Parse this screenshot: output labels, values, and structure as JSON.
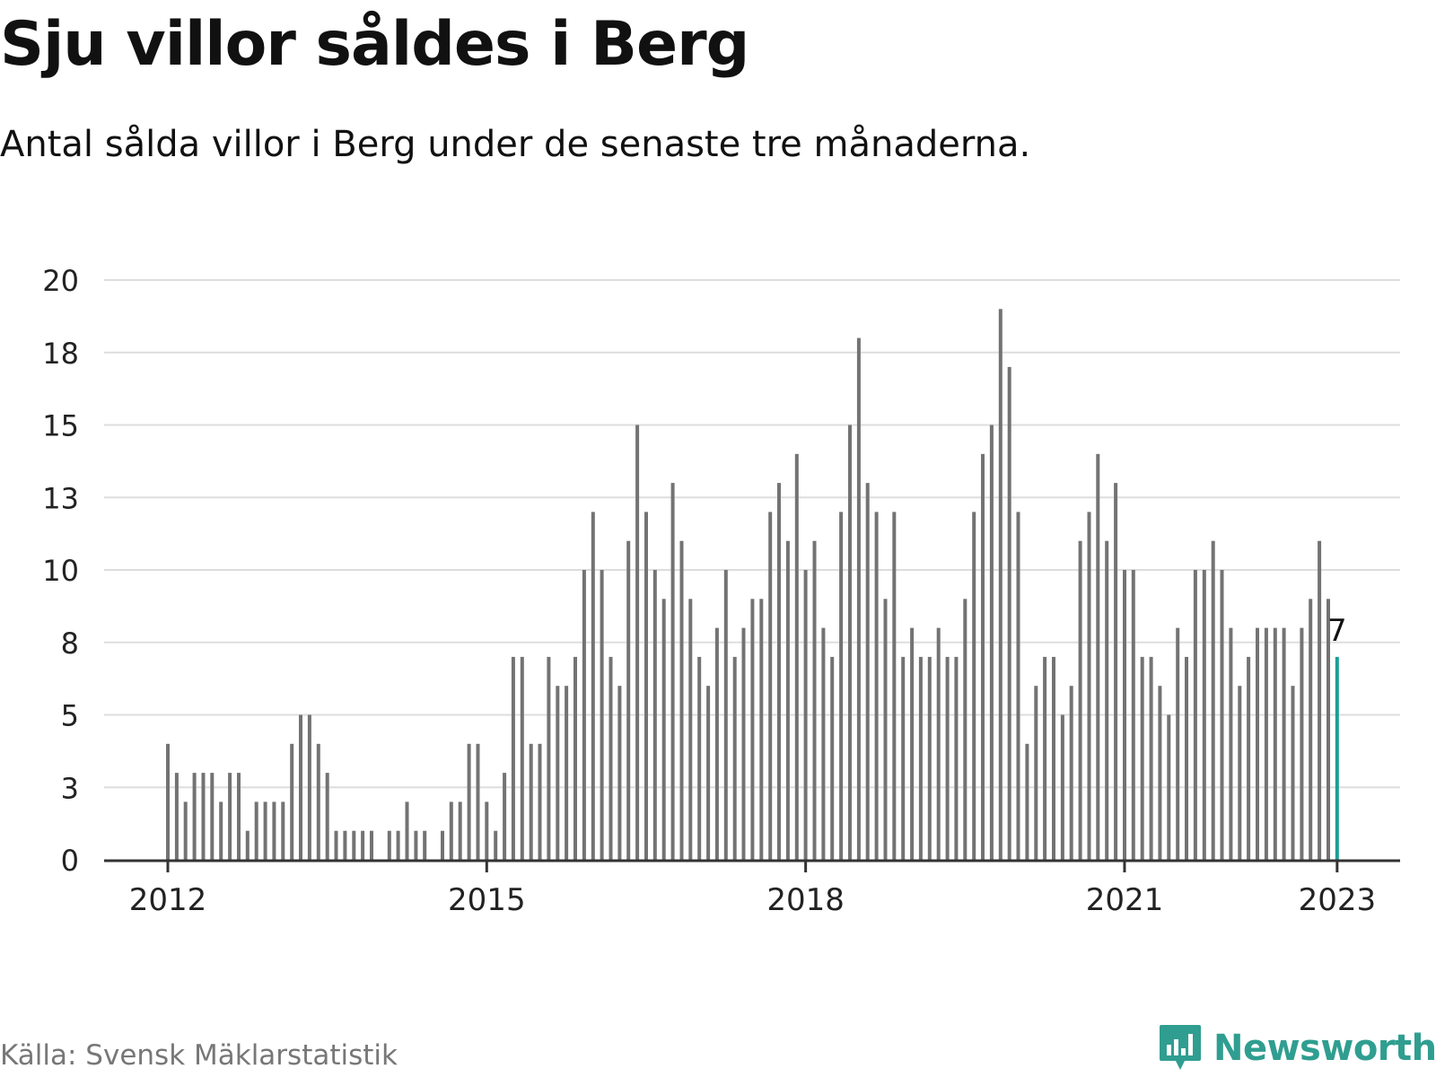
{
  "title": "Sju villor såldes i Berg",
  "subtitle": "Antal sålda villor i Berg under de senaste tre månaderna.",
  "source": "Källa: Svensk Mäklarstatistik",
  "brand": {
    "name": "Newsworthy",
    "icon": "newsworthy-logo-icon",
    "color": "#2f9e90"
  },
  "colors": {
    "bar": "#737373",
    "highlight": "#1a9e96",
    "grid": "#dddddd",
    "axis": "#333333"
  },
  "chart_data": {
    "type": "bar",
    "x_start": "2012-01",
    "x_step": "month",
    "ylim": [
      0,
      20
    ],
    "yticks": [
      0,
      3,
      5,
      8,
      10,
      13,
      15,
      18,
      20
    ],
    "y_tick_positions": [
      0,
      2.5,
      5,
      7.5,
      10,
      12.5,
      15,
      17.5,
      20
    ],
    "xticks": [
      {
        "label": "2012",
        "index": 0
      },
      {
        "label": "2015",
        "index": 36
      },
      {
        "label": "2018",
        "index": 72
      },
      {
        "label": "2021",
        "index": 108
      },
      {
        "label": "2023",
        "index": 132
      }
    ],
    "values": [
      4,
      3,
      2,
      3,
      3,
      3,
      2,
      3,
      3,
      1,
      2,
      2,
      2,
      2,
      4,
      5,
      5,
      4,
      3,
      1,
      1,
      1,
      1,
      1,
      0,
      1,
      1,
      2,
      1,
      1,
      0,
      1,
      2,
      2,
      4,
      4,
      2,
      1,
      3,
      7,
      7,
      4,
      4,
      7,
      6,
      6,
      7,
      10,
      12,
      10,
      7,
      6,
      11,
      15,
      12,
      10,
      9,
      13,
      11,
      9,
      7,
      6,
      8,
      10,
      7,
      8,
      9,
      9,
      12,
      13,
      11,
      14,
      10,
      11,
      8,
      7,
      12,
      15,
      18,
      13,
      12,
      9,
      12,
      7,
      8,
      7,
      7,
      8,
      7,
      7,
      9,
      12,
      14,
      15,
      19,
      17,
      12,
      4,
      6,
      7,
      7,
      5,
      6,
      11,
      12,
      14,
      11,
      13,
      10,
      10,
      7,
      7,
      6,
      5,
      8,
      7,
      10,
      10,
      11,
      10,
      8,
      6,
      7,
      8,
      8,
      8,
      8,
      6,
      8,
      9,
      11,
      9,
      7
    ],
    "highlight_index": 132,
    "highlight_label": "7"
  }
}
